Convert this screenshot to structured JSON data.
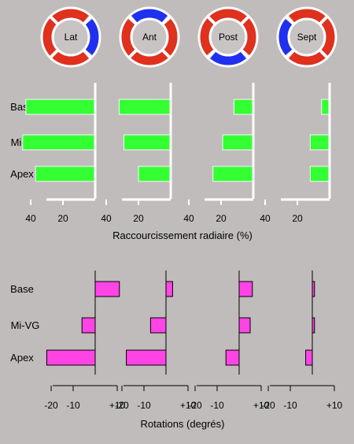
{
  "colors": {
    "background": "#c0bcbc",
    "ring_red": "#e0301e",
    "ring_blue": "#2030f0",
    "ring_inner": "#c8c4c4",
    "radial_bar": "#33ff33",
    "rotation_bar": "#ff44e6",
    "axis_white": "#ffffff",
    "axis_black": "#000000"
  },
  "chart_data": [
    {
      "type": "donut",
      "segments": [
        {
          "label": "Lat",
          "highlight": "right"
        },
        {
          "label": "Ant",
          "highlight": "top"
        },
        {
          "label": "Post",
          "highlight": "bottom"
        },
        {
          "label": "Sept",
          "highlight": "left"
        }
      ]
    },
    {
      "type": "bar",
      "orientation": "horizontal",
      "categories": [
        "Base",
        "Mi-VG",
        "Apex"
      ],
      "panels": [
        "Lat",
        "Ant",
        "Post",
        "Sept"
      ],
      "series": [
        {
          "values": [
            43,
            45,
            37
          ]
        },
        {
          "values": [
            32,
            29,
            20
          ]
        },
        {
          "values": [
            12,
            19,
            25
          ]
        },
        {
          "values": [
            5,
            12,
            12
          ]
        }
      ],
      "xlim": [
        50,
        0
      ],
      "xticks": [
        "40",
        "20"
      ],
      "xlabel": "Raccourcissement radiaire (%)"
    },
    {
      "type": "bar",
      "orientation": "horizontal",
      "categories": [
        "Base",
        "Mi-VG",
        "Apex"
      ],
      "series": [
        {
          "values": [
            11,
            -6,
            -22
          ]
        },
        {
          "values": [
            3,
            -7,
            -18
          ]
        },
        {
          "values": [
            6,
            5,
            -6
          ]
        },
        {
          "values": [
            1,
            1,
            -3
          ]
        }
      ],
      "xlim": [
        -25,
        12
      ],
      "xticks": [
        "-20",
        "-10",
        "+10"
      ],
      "xlabel": "Rotations (degrés)"
    }
  ]
}
